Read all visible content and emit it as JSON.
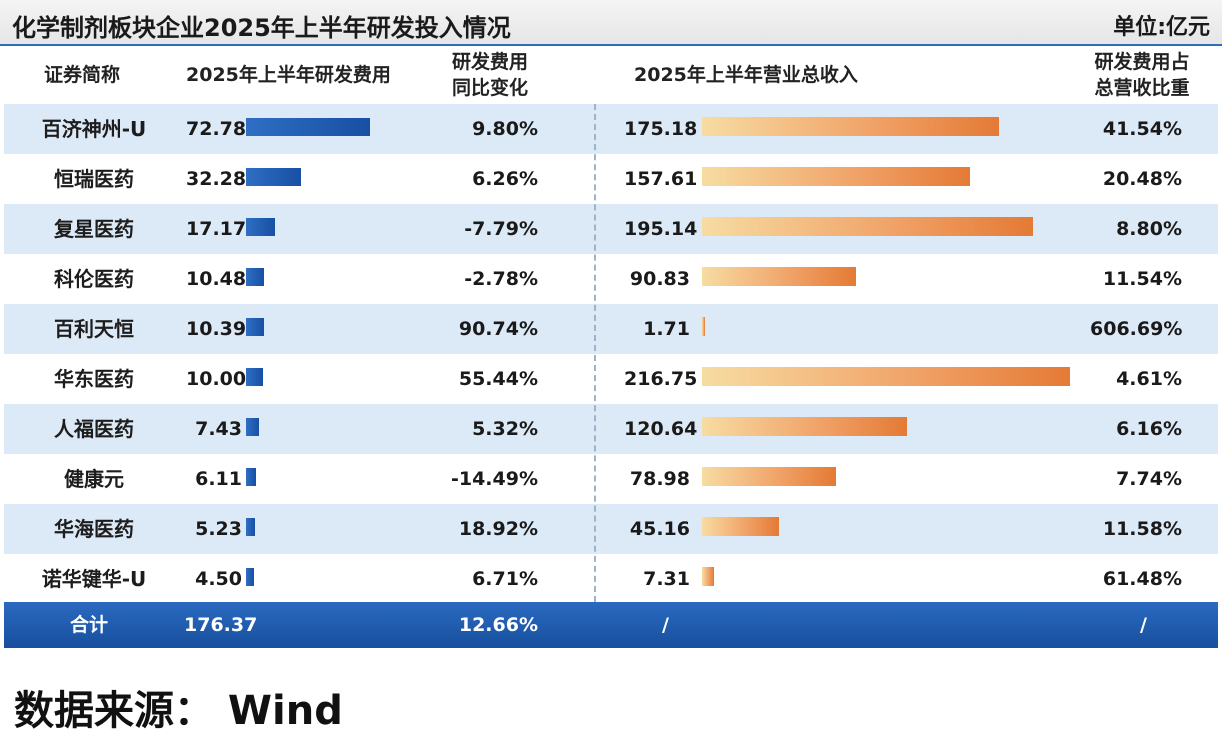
{
  "title": "化学制剂板块企业2025年上半年研发投入情况",
  "unit": "单位:亿元",
  "headers": {
    "name": "证券简称",
    "rd": "2025年上半年研发费用",
    "yoy_line1": "研发费用",
    "yoy_line2": "同比变化",
    "revenue": "2025年上半年营业总收入",
    "ratio_line1": "研发费用占",
    "ratio_line2": "总营收比重"
  },
  "chart_data": {
    "type": "table",
    "columns": [
      "证券简称",
      "2025年上半年研发费用",
      "研发费用同比变化",
      "2025年上半年营业总收入",
      "研发费用占总营收比重"
    ],
    "rows": [
      {
        "name": "百济神州-U",
        "rd": 72.78,
        "rd_label": "72.78",
        "yoy": "9.80%",
        "revenue": 175.18,
        "revenue_label": "175.18",
        "ratio": "41.54%"
      },
      {
        "name": "恒瑞医药",
        "rd": 32.28,
        "rd_label": "32.28",
        "yoy": "6.26%",
        "revenue": 157.61,
        "revenue_label": "157.61",
        "ratio": "20.48%"
      },
      {
        "name": "复星医药",
        "rd": 17.17,
        "rd_label": "17.17",
        "yoy": "-7.79%",
        "revenue": 195.14,
        "revenue_label": "195.14",
        "ratio": "8.80%"
      },
      {
        "name": "科伦医药",
        "rd": 10.48,
        "rd_label": "10.48",
        "yoy": "-2.78%",
        "revenue": 90.83,
        "revenue_label": "90.83",
        "ratio": "11.54%"
      },
      {
        "name": "百利天恒",
        "rd": 10.39,
        "rd_label": "10.39",
        "yoy": "90.74%",
        "revenue": 1.71,
        "revenue_label": "1.71",
        "ratio": "606.69%"
      },
      {
        "name": "华东医药",
        "rd": 10.0,
        "rd_label": "10.00",
        "yoy": "55.44%",
        "revenue": 216.75,
        "revenue_label": "216.75",
        "ratio": "4.61%"
      },
      {
        "name": "人福医药",
        "rd": 7.43,
        "rd_label": "7.43",
        "yoy": "5.32%",
        "revenue": 120.64,
        "revenue_label": "120.64",
        "ratio": "6.16%"
      },
      {
        "name": "健康元",
        "rd": 6.11,
        "rd_label": "6.11",
        "yoy": "-14.49%",
        "revenue": 78.98,
        "revenue_label": "78.98",
        "ratio": "7.74%"
      },
      {
        "name": "华海医药",
        "rd": 5.23,
        "rd_label": "5.23",
        "yoy": "18.92%",
        "revenue": 45.16,
        "revenue_label": "45.16",
        "ratio": "11.58%"
      },
      {
        "name": "诺华键华-U",
        "rd": 4.5,
        "rd_label": "4.50",
        "yoy": "6.71%",
        "revenue": 7.31,
        "revenue_label": "7.31",
        "ratio": "61.48%"
      }
    ],
    "total": {
      "name": "合计",
      "rd": "176.37",
      "yoy": "12.66%",
      "revenue": "/",
      "ratio": "/"
    }
  },
  "colors": {
    "rd_bar": "#1f5fb5",
    "revenue_bar_start": "#f7dca2",
    "revenue_bar_end": "#e47a35",
    "row_shade": "#dce9f6",
    "total_bg": "#1e5cae"
  },
  "source": "数据来源： Wind"
}
